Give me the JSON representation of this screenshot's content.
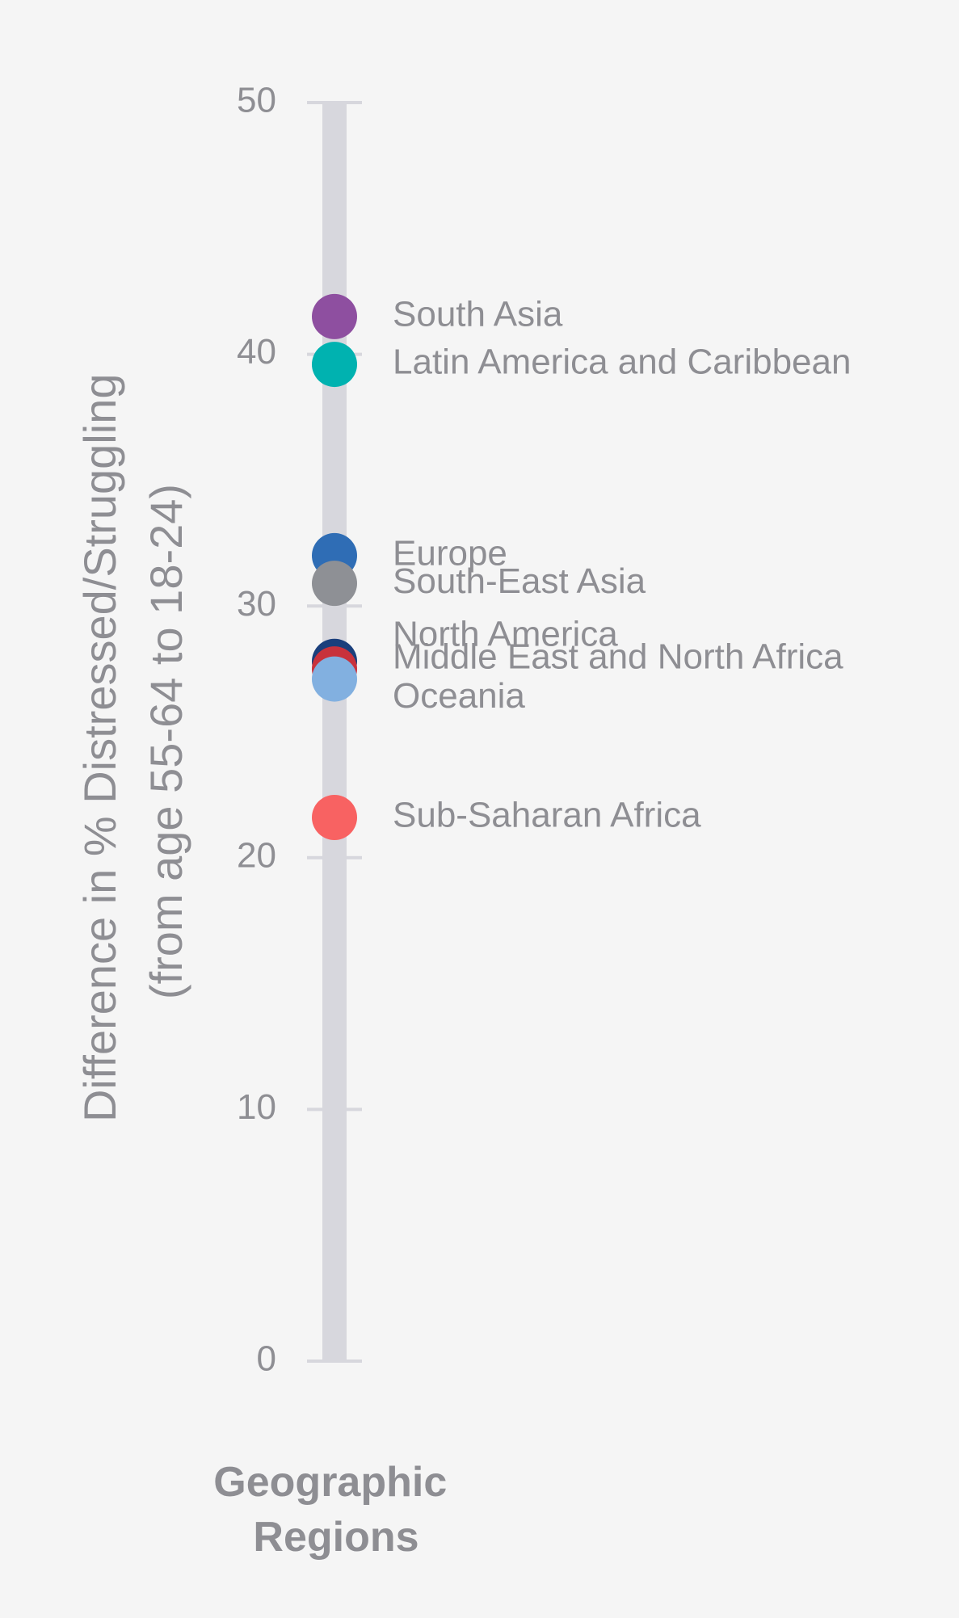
{
  "chart_data": {
    "type": "scatter",
    "ylabel_line1": "Difference in % Distressed/Struggling",
    "ylabel_line2": "(from age 55-64 to 18-24)",
    "xlabel_line1": "Geographic",
    "xlabel_line2": "Regions",
    "ylim": [
      0,
      50
    ],
    "yticks": [
      0,
      10,
      20,
      30,
      40,
      50
    ],
    "grid": false,
    "legend": "none",
    "track_color": "#d7d7dd",
    "points": [
      {
        "label": "South Asia",
        "value": 41.5,
        "color": "#8e4fa0"
      },
      {
        "label": "Latin America and Caribbean",
        "value": 39.6,
        "color": "#00b2b0"
      },
      {
        "label": "Europe",
        "value": 32.0,
        "color": "#2f6db5"
      },
      {
        "label": "South-East Asia",
        "value": 30.9,
        "color": "#8e9095"
      },
      {
        "label": "North America",
        "value": 27.8,
        "color": "#1a3f7c"
      },
      {
        "label": "Middle East and North Africa",
        "value": 27.5,
        "color": "#c8323c"
      },
      {
        "label": "Oceania",
        "value": 27.1,
        "color": "#82b0e0"
      },
      {
        "label": "Sub-Saharan Africa",
        "value": 21.6,
        "color": "#f86262"
      }
    ]
  }
}
